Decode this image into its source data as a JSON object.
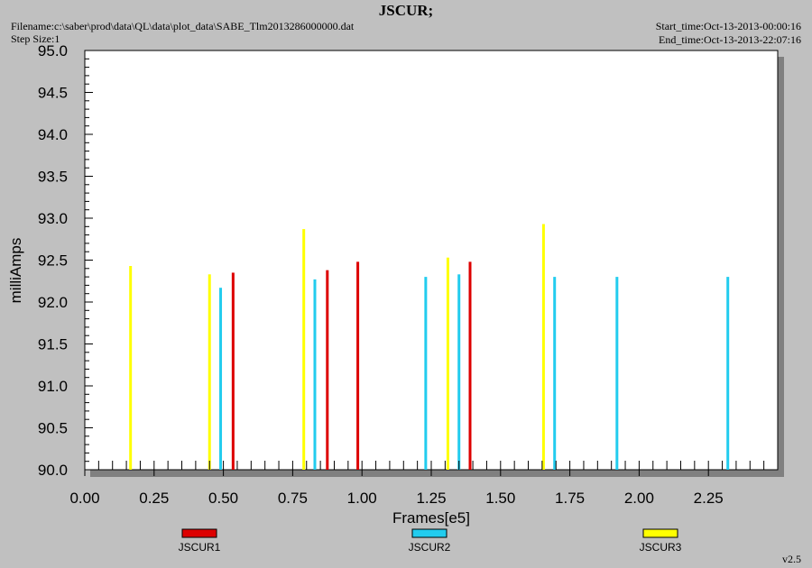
{
  "header": {
    "title": "JSCUR;",
    "filename": "Filename:c:\\saber\\prod\\data\\QL\\data\\plot_data\\SABE_Tlm2013286000000.dat",
    "step_size": "Step Size:1",
    "start_time": "Start_time:Oct-13-2013-00:00:16",
    "end_time": "End_time:Oct-13-2013-22:07:16",
    "version": "v2.5"
  },
  "colors": {
    "background": "#c0c0c0",
    "plot_area": "#ffffff",
    "JSCUR1": "#dd0000",
    "JSCUR2": "#22ccee",
    "JSCUR3": "#ffff00"
  },
  "chart_data": {
    "type": "bar",
    "xlabel": "Frames[e5]",
    "ylabel": "milliAmps",
    "xlim": [
      0,
      2.5
    ],
    "ylim": [
      90.0,
      95.0
    ],
    "xticks": [
      "0.00",
      "0.25",
      "0.50",
      "0.75",
      "1.00",
      "1.25",
      "1.50",
      "1.75",
      "2.00",
      "2.25"
    ],
    "yticks": [
      "90.0",
      "90.5",
      "91.0",
      "91.5",
      "92.0",
      "92.5",
      "93.0",
      "93.5",
      "94.0",
      "94.5",
      "95.0"
    ],
    "grid": false,
    "legend_position": "bottom",
    "series": [
      {
        "name": "JSCUR1",
        "x": [
          0.535,
          0.875,
          0.985,
          1.39
        ],
        "y": [
          92.35,
          92.38,
          92.48,
          92.48
        ]
      },
      {
        "name": "JSCUR2",
        "x": [
          0.49,
          0.83,
          1.23,
          1.35,
          1.695,
          1.92,
          2.32
        ],
        "y": [
          92.17,
          92.27,
          92.3,
          92.33,
          92.3,
          92.3,
          92.3
        ]
      },
      {
        "name": "JSCUR3",
        "x": [
          0.165,
          0.45,
          0.79,
          1.31,
          1.655
        ],
        "y": [
          92.43,
          92.33,
          92.87,
          92.53,
          92.93
        ]
      }
    ]
  }
}
